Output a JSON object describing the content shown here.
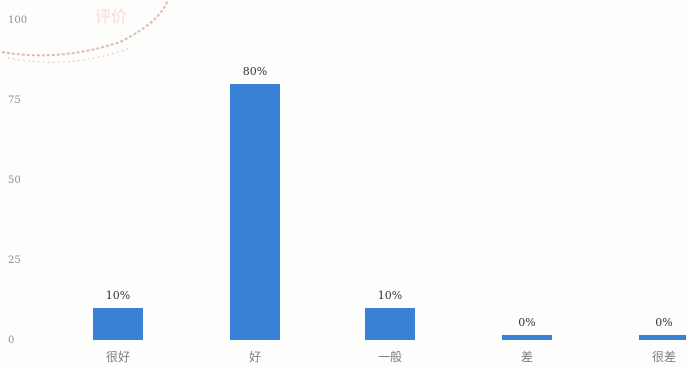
{
  "chart_data": {
    "type": "bar",
    "categories": [
      "很好",
      "好",
      "一般",
      "差",
      "很差"
    ],
    "values": [
      10,
      80,
      10,
      0,
      0
    ],
    "data_labels": [
      "10%",
      "80%",
      "10%",
      "0%",
      "0%"
    ],
    "y_ticks": [
      "0",
      "25",
      "50",
      "75",
      "100"
    ],
    "ylim": [
      0,
      100
    ],
    "title": "",
    "xlabel": "",
    "ylabel": "",
    "grid": false,
    "bar_color": "#3a82d6"
  },
  "stamp": {
    "text": "评价",
    "color": "#d8a0a8"
  }
}
